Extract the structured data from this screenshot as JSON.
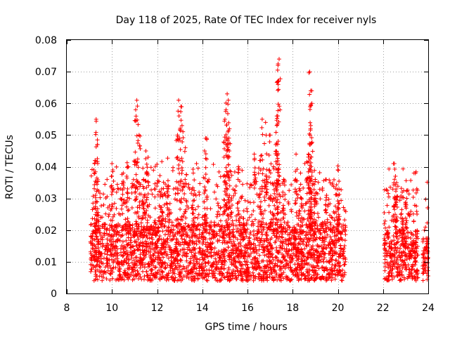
{
  "chart_data": {
    "type": "scatter",
    "title": "Day 118 of 2025, Rate Of TEC Index for receiver nyls",
    "xlabel": "GPS time / hours",
    "ylabel": "ROTI / TECUs",
    "xlim": [
      8,
      24
    ],
    "ylim": [
      0,
      0.08
    ],
    "grid": true,
    "marker": "plus",
    "color": "#ff0000",
    "x_ticks": [
      "8",
      "10",
      "12",
      "14",
      "16",
      "18",
      "20",
      "22",
      "24"
    ],
    "y_ticks": [
      "0",
      "0.01",
      "0.02",
      "0.03",
      "0.04",
      "0.05",
      "0.06",
      "0.07",
      "0.08"
    ],
    "x_tick_values": [
      8,
      10,
      12,
      14,
      16,
      18,
      20,
      22,
      24
    ],
    "y_tick_values": [
      0,
      0.01,
      0.02,
      0.03,
      0.04,
      0.05,
      0.06,
      0.07,
      0.08
    ],
    "series": [
      {
        "name": "ROTI",
        "segments": [
          {
            "start": 9.05,
            "end": 20.35,
            "baseline": 0.013,
            "spread": 0.009
          },
          {
            "start": 22.05,
            "end": 23.55,
            "baseline": 0.012,
            "spread": 0.008
          },
          {
            "start": 23.75,
            "end": 24.0,
            "baseline": 0.011,
            "spread": 0.007
          }
        ],
        "peaks": [
          {
            "x": 9.3,
            "y": 0.055
          },
          {
            "x": 9.35,
            "y": 0.047
          },
          {
            "x": 9.25,
            "y": 0.042
          },
          {
            "x": 10.0,
            "y": 0.041
          },
          {
            "x": 10.5,
            "y": 0.038
          },
          {
            "x": 10.7,
            "y": 0.04
          },
          {
            "x": 11.1,
            "y": 0.061
          },
          {
            "x": 11.05,
            "y": 0.058
          },
          {
            "x": 11.2,
            "y": 0.05
          },
          {
            "x": 11.5,
            "y": 0.045
          },
          {
            "x": 11.6,
            "y": 0.043
          },
          {
            "x": 11.4,
            "y": 0.036
          },
          {
            "x": 12.2,
            "y": 0.031
          },
          {
            "x": 12.5,
            "y": 0.034
          },
          {
            "x": 12.95,
            "y": 0.061
          },
          {
            "x": 13.05,
            "y": 0.059
          },
          {
            "x": 13.1,
            "y": 0.053
          },
          {
            "x": 12.9,
            "y": 0.05
          },
          {
            "x": 13.25,
            "y": 0.046
          },
          {
            "x": 13.6,
            "y": 0.038
          },
          {
            "x": 14.15,
            "y": 0.049
          },
          {
            "x": 14.1,
            "y": 0.045
          },
          {
            "x": 15.1,
            "y": 0.063
          },
          {
            "x": 15.15,
            "y": 0.061
          },
          {
            "x": 15.05,
            "y": 0.058
          },
          {
            "x": 15.0,
            "y": 0.055
          },
          {
            "x": 15.2,
            "y": 0.052
          },
          {
            "x": 15.1,
            "y": 0.049
          },
          {
            "x": 15.6,
            "y": 0.04
          },
          {
            "x": 16.3,
            "y": 0.044
          },
          {
            "x": 16.65,
            "y": 0.055
          },
          {
            "x": 16.8,
            "y": 0.054
          },
          {
            "x": 16.55,
            "y": 0.042
          },
          {
            "x": 17.0,
            "y": 0.05
          },
          {
            "x": 17.4,
            "y": 0.074
          },
          {
            "x": 17.35,
            "y": 0.072
          },
          {
            "x": 17.35,
            "y": 0.067
          },
          {
            "x": 17.3,
            "y": 0.056
          },
          {
            "x": 17.3,
            "y": 0.053
          },
          {
            "x": 17.15,
            "y": 0.04
          },
          {
            "x": 17.6,
            "y": 0.036
          },
          {
            "x": 18.15,
            "y": 0.044
          },
          {
            "x": 18.35,
            "y": 0.038
          },
          {
            "x": 18.75,
            "y": 0.07
          },
          {
            "x": 18.8,
            "y": 0.064
          },
          {
            "x": 18.85,
            "y": 0.06
          },
          {
            "x": 18.8,
            "y": 0.053
          },
          {
            "x": 18.75,
            "y": 0.047
          },
          {
            "x": 18.7,
            "y": 0.044
          },
          {
            "x": 19.0,
            "y": 0.036
          },
          {
            "x": 19.5,
            "y": 0.031
          },
          {
            "x": 20.0,
            "y": 0.039
          },
          {
            "x": 20.05,
            "y": 0.033
          },
          {
            "x": 22.5,
            "y": 0.041
          },
          {
            "x": 22.55,
            "y": 0.037
          },
          {
            "x": 22.6,
            "y": 0.035
          },
          {
            "x": 22.85,
            "y": 0.032
          },
          {
            "x": 23.05,
            "y": 0.03
          }
        ]
      }
    ]
  }
}
